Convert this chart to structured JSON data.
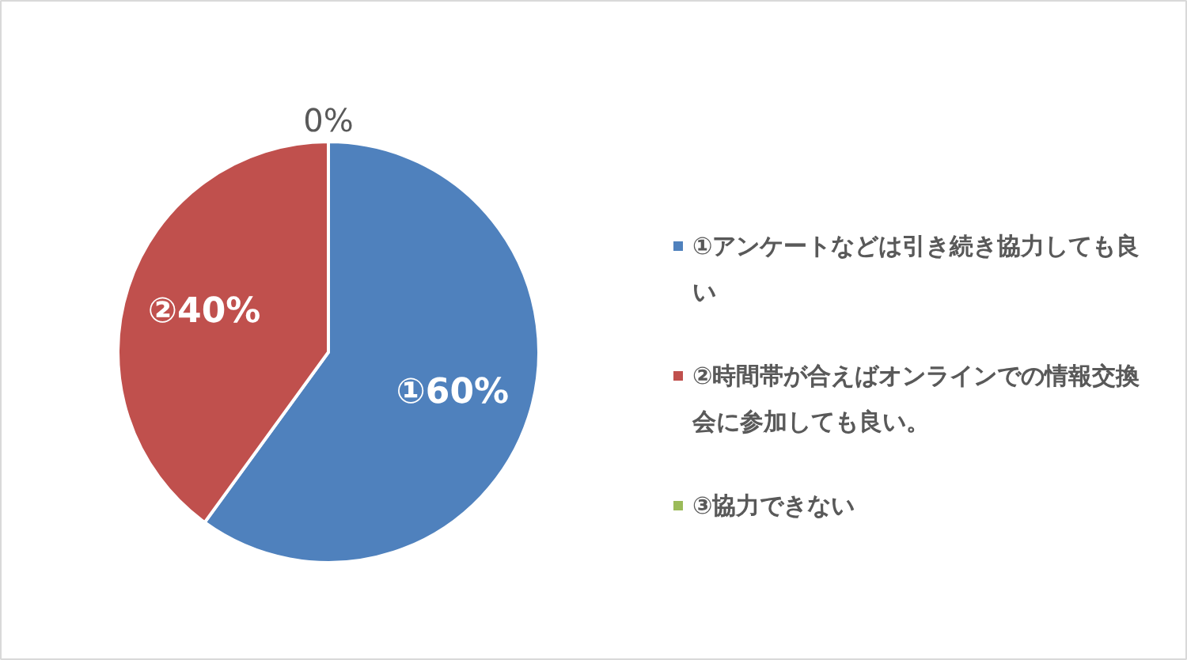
{
  "chart_data": {
    "type": "pie",
    "categories": [
      "①アンケートなどは引き続き協力しても良い",
      "②時間帯が合えばオンラインでの情報交換会に参加しても良い。",
      "③協力できない"
    ],
    "values": [
      60,
      40,
      0
    ],
    "colors": [
      "#4f81bd",
      "#c0504d",
      "#9bbb59"
    ],
    "value_labels": [
      "①60%",
      "②40%",
      "0%"
    ],
    "legend": "right"
  }
}
